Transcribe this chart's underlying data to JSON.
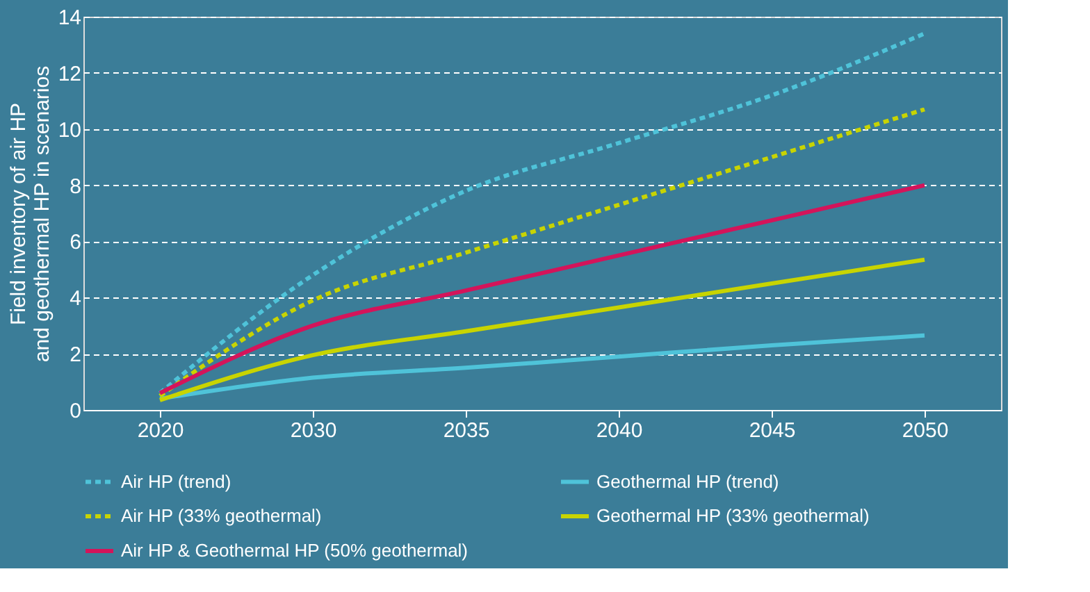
{
  "chart_data": {
    "type": "line",
    "ylabel": "Field inventory of air HP and geothermal HP in scenarios",
    "categories": [
      "2020",
      "2030",
      "2035",
      "2040",
      "2045",
      "2050"
    ],
    "series": [
      {
        "name": "Air HP (trend)",
        "color": "#4fc3d9",
        "line_style": "dashed",
        "values": [
          0.6,
          4.8,
          7.8,
          9.5,
          11.2,
          13.4
        ]
      },
      {
        "name": "Geothermal HP (trend)",
        "color": "#4fc3d9",
        "line_style": "solid",
        "values": [
          0.4,
          1.15,
          1.5,
          1.9,
          2.3,
          2.65
        ]
      },
      {
        "name": "Air HP (33% geothermal)",
        "color": "#c8d400",
        "line_style": "dashed",
        "values": [
          0.5,
          3.9,
          5.6,
          7.3,
          9.0,
          10.7
        ]
      },
      {
        "name": "Geothermal HP (33% geothermal)",
        "color": "#c8d400",
        "line_style": "solid",
        "values": [
          0.35,
          1.95,
          2.8,
          3.65,
          4.5,
          5.35
        ]
      },
      {
        "name": "Air HP & Geothermal HP (50% geothermal)",
        "color": "#d4145a",
        "line_style": "solid",
        "values": [
          0.6,
          3.0,
          4.25,
          5.5,
          6.75,
          8.0
        ]
      }
    ],
    "ylim": [
      0,
      14
    ],
    "yticks": [
      0,
      2,
      4,
      6,
      8,
      10,
      12,
      14
    ],
    "grid": "y",
    "legend": "bottom",
    "marker": "none"
  }
}
